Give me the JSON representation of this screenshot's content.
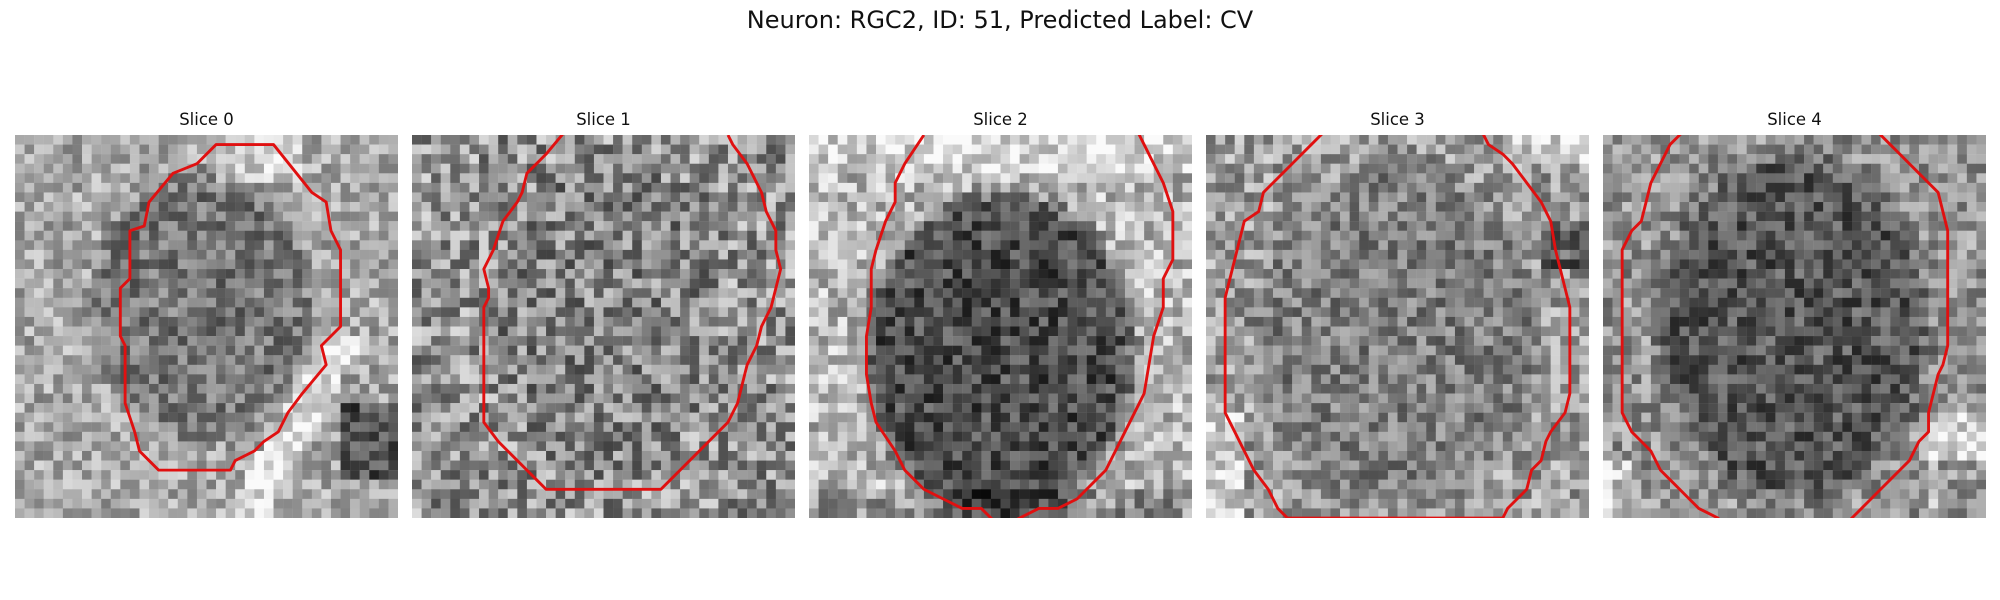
{
  "figure": {
    "title": "Neuron: RGC2, ID: 51, Predicted Label: CV"
  },
  "colors": {
    "contour": "#e01010",
    "background": "#ffffff",
    "colormap": "grayscale"
  },
  "panels": [
    {
      "title": "Slice 0"
    },
    {
      "title": "Slice 1"
    },
    {
      "title": "Slice 2"
    },
    {
      "title": "Slice 3"
    },
    {
      "title": "Slice 4"
    }
  ]
}
